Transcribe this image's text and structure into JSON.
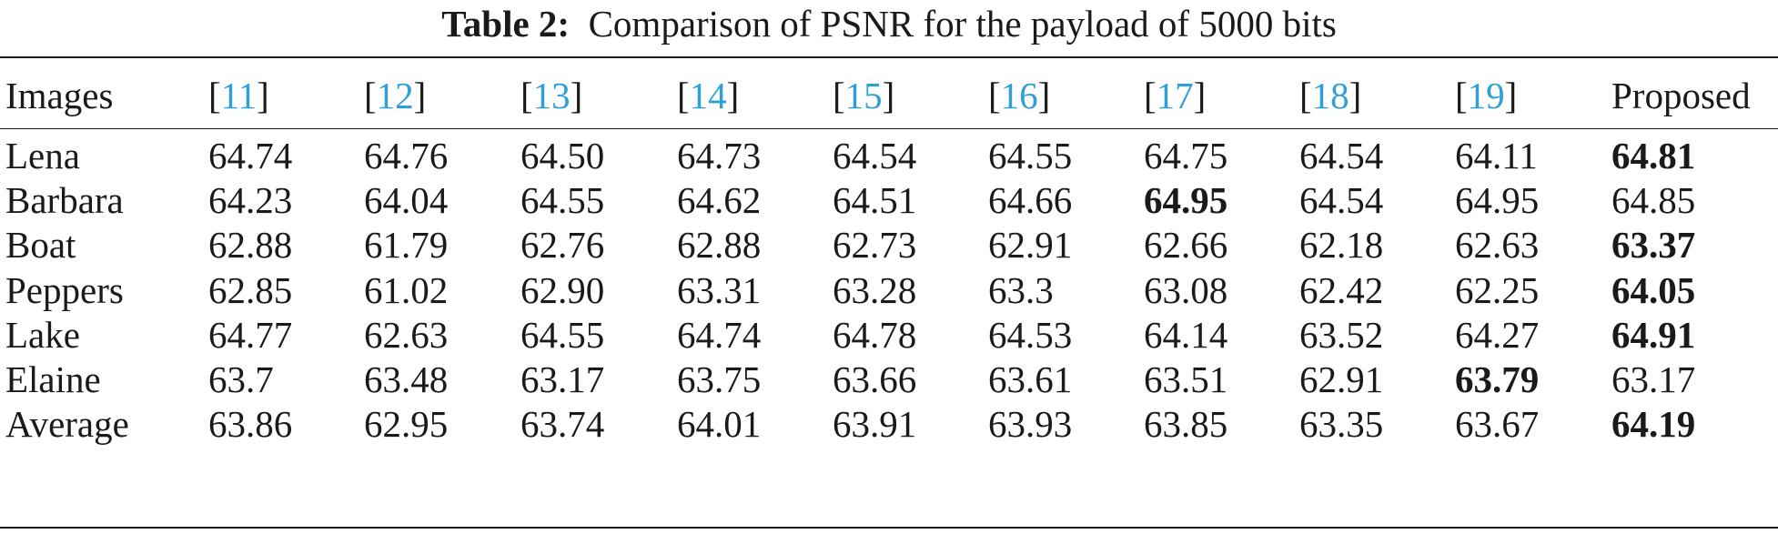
{
  "caption": {
    "label": "Table 2:",
    "text": "Comparison of PSNR for the payload of 5000 bits"
  },
  "header": [
    {
      "text": "Images",
      "cite": false
    },
    {
      "text": "11",
      "cite": true
    },
    {
      "text": "12",
      "cite": true
    },
    {
      "text": "13",
      "cite": true
    },
    {
      "text": "14",
      "cite": true
    },
    {
      "text": "15",
      "cite": true
    },
    {
      "text": "16",
      "cite": true
    },
    {
      "text": "17",
      "cite": true
    },
    {
      "text": "18",
      "cite": true
    },
    {
      "text": "19",
      "cite": true
    },
    {
      "text": "Proposed",
      "cite": false
    }
  ],
  "rows": [
    {
      "image": "Lena",
      "values": [
        "64.74",
        "64.76",
        "64.50",
        "64.73",
        "64.54",
        "64.55",
        "64.75",
        "64.54",
        "64.11",
        "64.81"
      ],
      "bold": [
        9
      ]
    },
    {
      "image": "Barbara",
      "values": [
        "64.23",
        "64.04",
        "64.55",
        "64.62",
        "64.51",
        "64.66",
        "64.95",
        "64.54",
        "64.95",
        "64.85"
      ],
      "bold": [
        6
      ]
    },
    {
      "image": "Boat",
      "values": [
        "62.88",
        "61.79",
        "62.76",
        "62.88",
        "62.73",
        "62.91",
        "62.66",
        "62.18",
        "62.63",
        "63.37"
      ],
      "bold": [
        9
      ]
    },
    {
      "image": "Peppers",
      "values": [
        "62.85",
        "61.02",
        "62.90",
        "63.31",
        "63.28",
        "63.3",
        "63.08",
        "62.42",
        "62.25",
        "64.05"
      ],
      "bold": [
        9
      ]
    },
    {
      "image": "Lake",
      "values": [
        "64.77",
        "62.63",
        "64.55",
        "64.74",
        "64.78",
        "64.53",
        "64.14",
        "63.52",
        "64.27",
        "64.91"
      ],
      "bold": [
        9
      ]
    },
    {
      "image": "Elaine",
      "values": [
        "63.7",
        "63.48",
        "63.17",
        "63.75",
        "63.66",
        "63.61",
        "63.51",
        "62.91",
        "63.79",
        "63.17"
      ],
      "bold": [
        8
      ]
    },
    {
      "image": "Average",
      "values": [
        "63.86",
        "62.95",
        "63.74",
        "64.01",
        "63.91",
        "63.93",
        "63.85",
        "63.35",
        "63.67",
        "64.19"
      ],
      "bold": [
        9
      ]
    }
  ],
  "colors": {
    "text": "#1a1a1a",
    "citation_link": "#2f9fd8"
  }
}
